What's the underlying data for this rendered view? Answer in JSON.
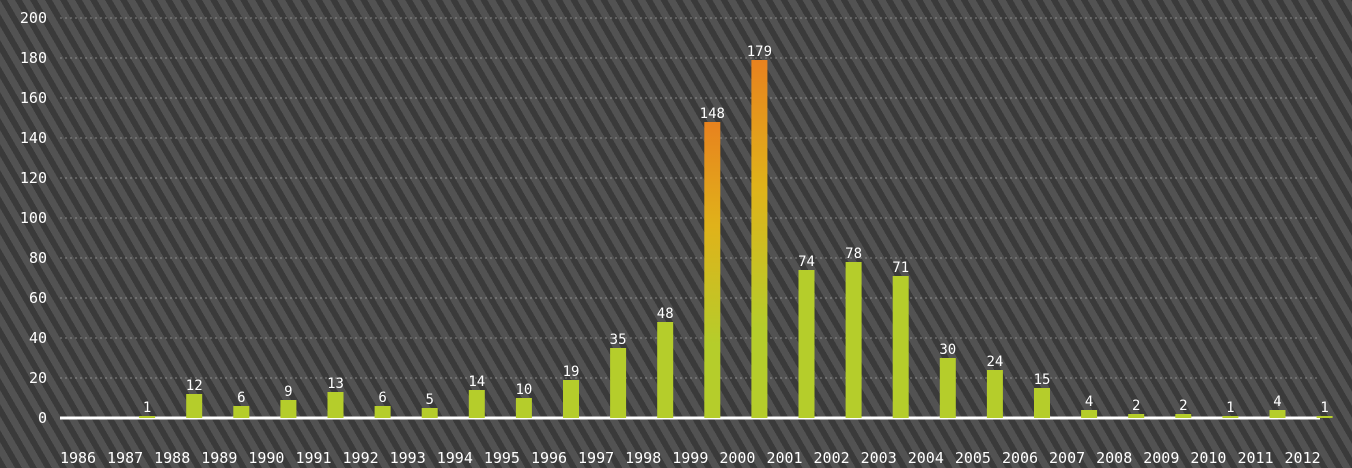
{
  "chart_data": {
    "type": "bar",
    "title": "",
    "xlabel": "",
    "ylabel": "",
    "ylim": [
      0,
      200
    ],
    "yticks": [
      0,
      20,
      40,
      60,
      80,
      100,
      120,
      140,
      160,
      180,
      200
    ],
    "grid": true,
    "categories": [
      "1986",
      "1987",
      "1988",
      "1989",
      "1990",
      "1991",
      "1992",
      "1993",
      "1994",
      "1995",
      "1996",
      "1997",
      "1998",
      "1999",
      "2000",
      "2001",
      "2002",
      "2003",
      "2004",
      "2005",
      "2006",
      "2007",
      "2008",
      "2009",
      "2010",
      "2011",
      "2012"
    ],
    "values": [
      null,
      1,
      12,
      6,
      9,
      13,
      6,
      5,
      14,
      10,
      19,
      35,
      48,
      148,
      179,
      74,
      78,
      71,
      30,
      24,
      15,
      4,
      2,
      2,
      1,
      4,
      1
    ],
    "colors": {
      "bar": "#b5cd2b",
      "highlight_top": "#e8821e",
      "highlight_mid": "#e0b21a",
      "text": "#ffffff",
      "baseline": "#ffffff"
    },
    "highlighted_categories": [
      "1999",
      "2000"
    ]
  }
}
